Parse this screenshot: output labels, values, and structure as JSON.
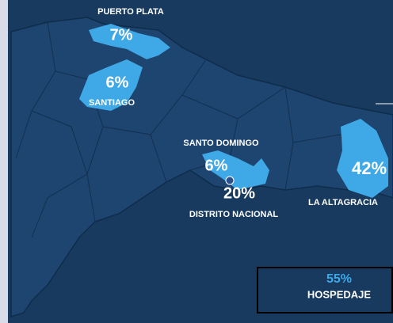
{
  "regions": [
    {
      "name": "PUERTO PLATA",
      "share": "7%"
    },
    {
      "name": "SANTIAGO",
      "share": "6%"
    },
    {
      "name": "SANTO DOMINGO",
      "share": "6%"
    },
    {
      "name": "DISTRITO NACIONAL",
      "share": "20%"
    },
    {
      "name": "LA ALTAGRACIA",
      "share": "42%"
    }
  ],
  "summary": {
    "share": "55%",
    "label": "HOSPEDAJE"
  }
}
